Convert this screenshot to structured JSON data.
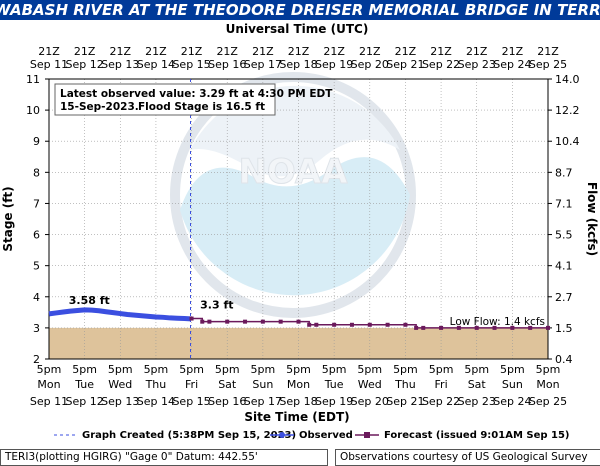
{
  "chart_data": {
    "type": "line",
    "title": "WABASH RIVER AT THE THEODORE DREISER MEMORIAL BRIDGE IN TERRE HAUTE",
    "top_axis_title": "Universal Time (UTC)",
    "top_tick_labels": [
      [
        "21Z",
        "Sep 11"
      ],
      [
        "21Z",
        "Sep 12"
      ],
      [
        "21Z",
        "Sep 13"
      ],
      [
        "21Z",
        "Sep 14"
      ],
      [
        "21Z",
        "Sep 15"
      ],
      [
        "21Z",
        "Sep 16"
      ],
      [
        "21Z",
        "Sep 17"
      ],
      [
        "21Z",
        "Sep 18"
      ],
      [
        "21Z",
        "Sep 19"
      ],
      [
        "21Z",
        "Sep 20"
      ],
      [
        "21Z",
        "Sep 21"
      ],
      [
        "21Z",
        "Sep 22"
      ],
      [
        "21Z",
        "Sep 23"
      ],
      [
        "21Z",
        "Sep 24"
      ],
      [
        "21Z",
        "Sep 25"
      ]
    ],
    "xlabel": "Site Time (EDT)",
    "bottom_tick_labels": [
      [
        "5pm",
        "Mon",
        "Sep 11"
      ],
      [
        "5pm",
        "Tue",
        "Sep 12"
      ],
      [
        "5pm",
        "Wed",
        "Sep 13"
      ],
      [
        "5pm",
        "Thu",
        "Sep 14"
      ],
      [
        "5pm",
        "Fri",
        "Sep 15"
      ],
      [
        "5pm",
        "Sat",
        "Sep 16"
      ],
      [
        "5pm",
        "Sun",
        "Sep 17"
      ],
      [
        "5pm",
        "Mon",
        "Sep 18"
      ],
      [
        "5pm",
        "Tue",
        "Sep 19"
      ],
      [
        "5pm",
        "Wed",
        "Sep 20"
      ],
      [
        "5pm",
        "Thu",
        "Sep 21"
      ],
      [
        "5pm",
        "Fri",
        "Sep 22"
      ],
      [
        "5pm",
        "Sat",
        "Sep 23"
      ],
      [
        "5pm",
        "Sun",
        "Sep 24"
      ],
      [
        "5pm",
        "Mon",
        "Sep 25"
      ]
    ],
    "x_range_days": [
      0,
      14
    ],
    "ylabel": "Stage (ft)",
    "ylim": [
      2,
      11
    ],
    "yticks": [
      2,
      3,
      4,
      5,
      6,
      7,
      8,
      9,
      10,
      11
    ],
    "y2label": "Flow (kcfs)",
    "y2_tick_labels": [
      "0.4",
      "1.5",
      "2.7",
      "4.1",
      "5.5",
      "7.1",
      "8.7",
      "10.4",
      "12.2",
      "14.0"
    ],
    "low_flow_label": "Low Flow: 1.4 kcfs",
    "low_flow_stage": 3.0,
    "graph_created_day": 3.97,
    "info_box": {
      "line1": "Latest observed value: 3.29 ft at 4:30 PM EDT",
      "line2a": "15-Sep-2023.",
      "line2b": "Flood Stage is 16.5 ft"
    },
    "series": [
      {
        "name": "Observed",
        "color": "#3b4fe0",
        "peak_label": "3.58 ft",
        "peak_label_day": 0.4,
        "peak_label_value": 3.58,
        "x_days": [
          0,
          0.2,
          0.4,
          0.6,
          0.8,
          1.0,
          1.2,
          1.4,
          1.6,
          1.8,
          2.0,
          2.2,
          2.4,
          2.6,
          2.8,
          3.0,
          3.2,
          3.4,
          3.6,
          3.8,
          3.97
        ],
        "values": [
          3.45,
          3.48,
          3.51,
          3.54,
          3.56,
          3.58,
          3.57,
          3.55,
          3.52,
          3.49,
          3.46,
          3.43,
          3.41,
          3.39,
          3.37,
          3.35,
          3.34,
          3.32,
          3.31,
          3.3,
          3.29
        ]
      },
      {
        "name": "Forecast",
        "color": "#6b1a5c",
        "start_label": "3.3 ft",
        "start_label_day": 4.1,
        "start_label_value": 3.3,
        "x_days": [
          4.0,
          4.3,
          4.5,
          5.0,
          5.5,
          6.0,
          6.5,
          7.0,
          7.3,
          7.5,
          8.0,
          8.5,
          9.0,
          9.5,
          10.0,
          10.3,
          10.5,
          11.0,
          11.5,
          12.0,
          12.5,
          13.0,
          13.5,
          14.0
        ],
        "values": [
          3.3,
          3.2,
          3.2,
          3.2,
          3.2,
          3.2,
          3.2,
          3.2,
          3.1,
          3.1,
          3.1,
          3.1,
          3.1,
          3.1,
          3.1,
          3.0,
          3.0,
          3.0,
          3.0,
          3.0,
          3.0,
          3.0,
          3.0,
          3.0
        ]
      }
    ],
    "legend": {
      "graph_created": "Graph Created (5:38PM Sep 15, 2023)",
      "observed": "Observed",
      "forecast": "Forecast (issued 9:01AM Sep 15)"
    },
    "grid": true,
    "colors": {
      "title_bg": "#003a99",
      "low_band": "#d8b98a",
      "observed": "#3b4fe0",
      "forecast": "#6b1a5c",
      "watermark": "#b9dff0"
    }
  },
  "footer": {
    "left": "TERI3(plotting HGIRG) \"Gage 0\" Datum: 442.55'",
    "right": "Observations courtesy of US Geological Survey"
  }
}
